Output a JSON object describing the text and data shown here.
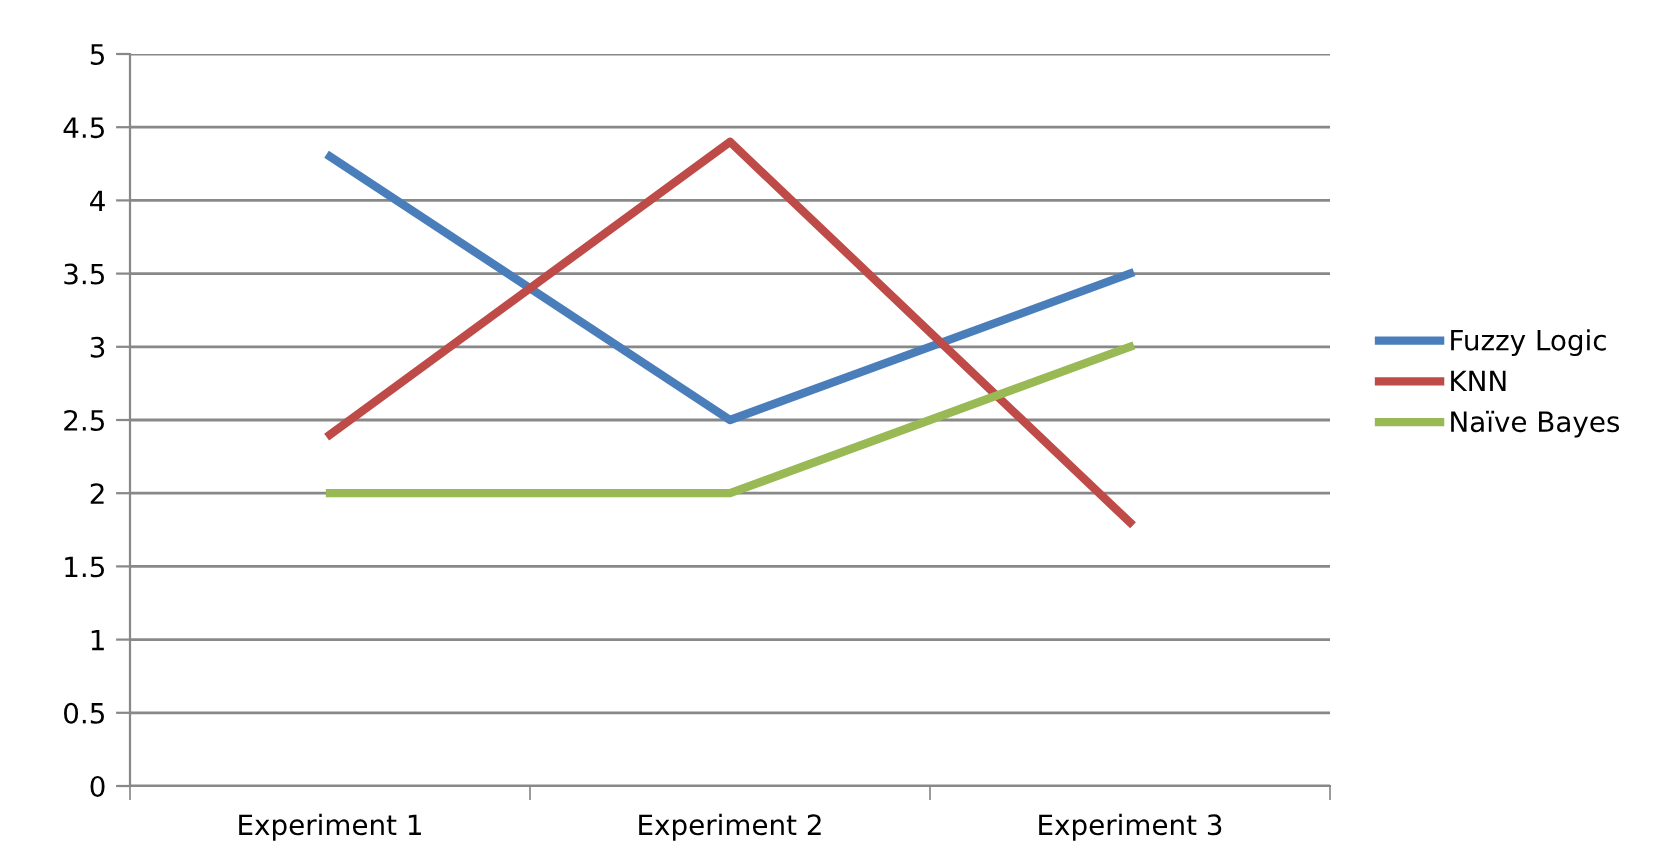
{
  "chart_data": {
    "type": "line",
    "categories": [
      "Experiment 1",
      "Experiment 2",
      "Experiment 3"
    ],
    "series": [
      {
        "name": "Fuzzy Logic",
        "color": "#4a7ebb",
        "values": [
          4.3,
          2.5,
          3.5
        ]
      },
      {
        "name": "KNN",
        "color": "#be4b48",
        "values": [
          2.4,
          4.4,
          1.8
        ]
      },
      {
        "name": "Naïve Bayes",
        "color": "#98b954",
        "values": [
          2,
          2,
          3
        ]
      }
    ],
    "ylim": [
      0,
      5
    ],
    "yticks": [
      0,
      0.5,
      1,
      1.5,
      2,
      2.5,
      3,
      3.5,
      4,
      4.5,
      5
    ],
    "grid": "y",
    "legend": "right",
    "marker": "none",
    "line_style": "solid"
  }
}
